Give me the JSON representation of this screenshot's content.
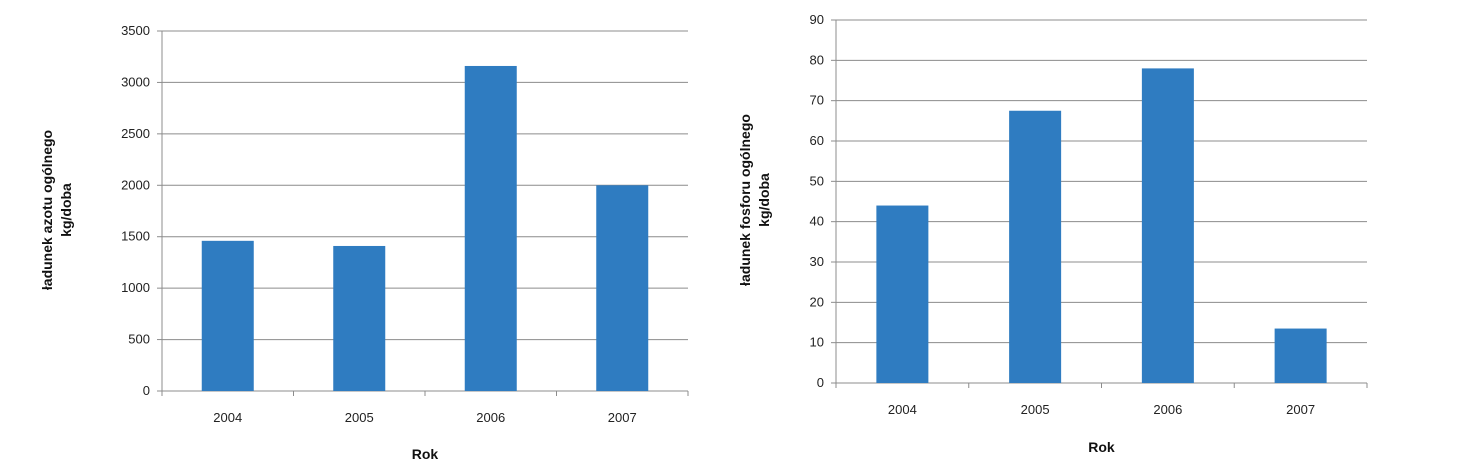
{
  "colors": {
    "bar": "#2f7cc1",
    "grid": "#8c8c8c",
    "axis": "#8c8c8c"
  },
  "chart_data": [
    {
      "type": "bar",
      "categories": [
        "2004",
        "2005",
        "2006",
        "2007"
      ],
      "values": [
        1460,
        1410,
        3160,
        2000
      ],
      "xlabel": "Rok",
      "ylabel_lines": [
        "ładunek azotu ogólnego",
        "kg/doba"
      ],
      "ylim": [
        0,
        3500
      ],
      "ytick_step": 500,
      "yticks": [
        "0",
        "500",
        "1000",
        "1500",
        "2000",
        "2500",
        "3000",
        "3500"
      ],
      "grid": true,
      "legend": "none"
    },
    {
      "type": "bar",
      "categories": [
        "2004",
        "2005",
        "2006",
        "2007"
      ],
      "values": [
        44,
        67.5,
        78,
        13.5
      ],
      "xlabel": "Rok",
      "ylabel_lines": [
        "ładunek fosforu ogólnego",
        "kg/doba"
      ],
      "ylim": [
        0,
        90
      ],
      "ytick_step": 10,
      "yticks": [
        "0",
        "10",
        "20",
        "30",
        "40",
        "50",
        "60",
        "70",
        "80",
        "90"
      ],
      "grid": true,
      "legend": "none"
    }
  ]
}
